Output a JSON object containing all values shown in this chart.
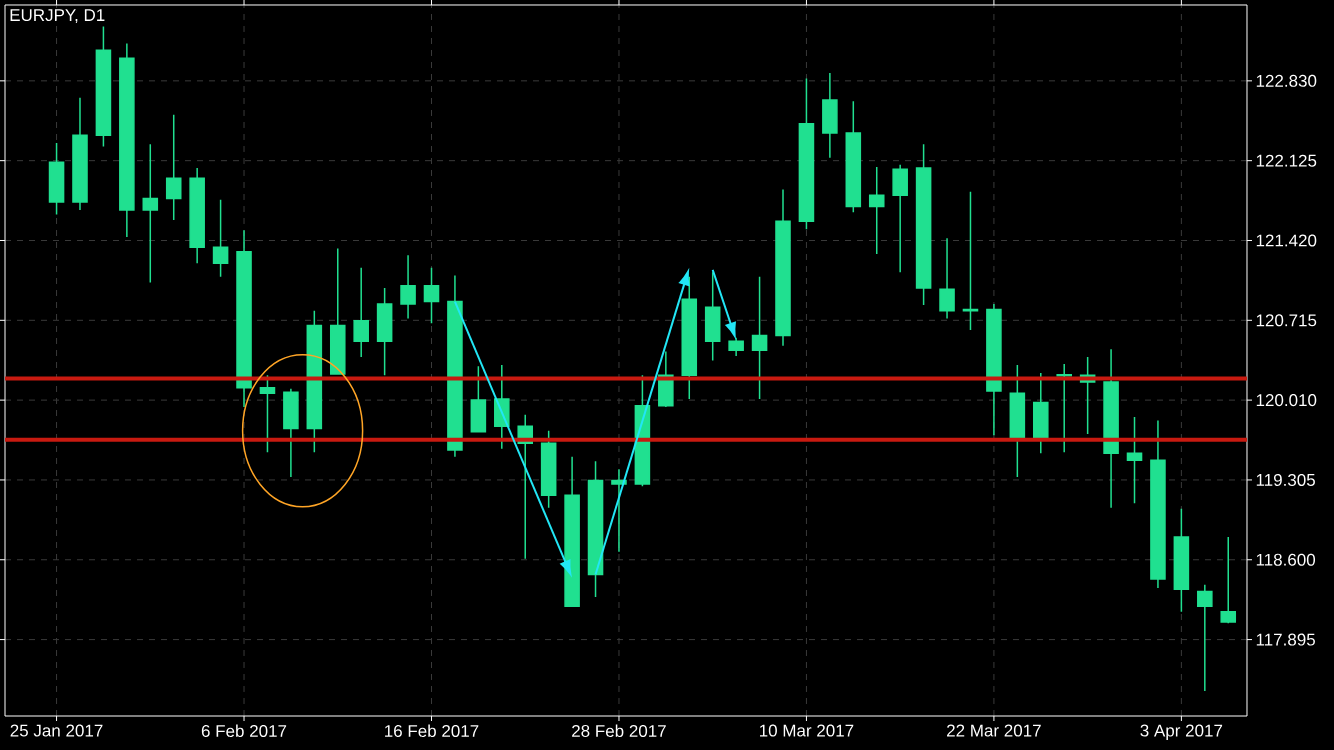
{
  "chart_data": {
    "type": "candlestick",
    "title": "EURJPY, D1",
    "categories": [
      "25 Jan 2017",
      null,
      null,
      null,
      null,
      null,
      null,
      null,
      "6 Feb 2017",
      null,
      null,
      null,
      null,
      null,
      null,
      null,
      "16 Feb 2017",
      null,
      null,
      null,
      null,
      null,
      null,
      null,
      "28 Feb 2017",
      null,
      null,
      null,
      null,
      null,
      null,
      null,
      "10 Mar 2017",
      null,
      null,
      null,
      null,
      null,
      null,
      null,
      "22 Mar 2017",
      null,
      null,
      null,
      null,
      null,
      null,
      null,
      "3 Apr 2017",
      null,
      null
    ],
    "ohlc": [
      [
        122.11,
        122.28,
        121.65,
        121.76
      ],
      [
        121.76,
        122.68,
        121.69,
        122.35
      ],
      [
        122.35,
        123.31,
        122.25,
        123.1
      ],
      [
        123.03,
        123.16,
        121.45,
        121.69
      ],
      [
        121.69,
        122.27,
        121.05,
        121.79
      ],
      [
        121.79,
        122.53,
        121.6,
        121.97
      ],
      [
        121.97,
        122.06,
        121.22,
        121.36
      ],
      [
        121.36,
        121.78,
        121.1,
        121.22
      ],
      [
        121.32,
        121.51,
        119.95,
        120.12
      ],
      [
        120.12,
        120.23,
        119.55,
        120.07
      ],
      [
        120.08,
        120.11,
        119.33,
        119.76
      ],
      [
        119.76,
        120.8,
        119.55,
        120.67
      ],
      [
        120.67,
        121.35,
        120.24,
        120.24
      ],
      [
        120.71,
        121.18,
        120.39,
        120.53
      ],
      [
        120.53,
        121.0,
        120.23,
        120.86
      ],
      [
        120.86,
        121.29,
        120.73,
        121.02
      ],
      [
        121.02,
        121.18,
        120.69,
        120.88
      ],
      [
        120.88,
        121.11,
        119.51,
        119.57
      ],
      [
        119.73,
        120.31,
        119.73,
        120.01
      ],
      [
        120.02,
        120.32,
        119.58,
        119.78
      ],
      [
        119.78,
        119.88,
        118.61,
        119.63
      ],
      [
        119.63,
        119.74,
        119.06,
        119.17
      ],
      [
        119.17,
        119.51,
        118.19,
        118.19
      ],
      [
        118.47,
        119.47,
        118.27,
        119.3
      ],
      [
        119.3,
        119.4,
        118.67,
        119.27
      ],
      [
        119.27,
        120.23,
        119.25,
        119.96
      ],
      [
        119.96,
        120.44,
        119.95,
        120.23
      ],
      [
        120.23,
        121.1,
        120.02,
        120.9
      ],
      [
        120.83,
        121.14,
        120.36,
        120.53
      ],
      [
        120.53,
        120.56,
        120.4,
        120.45
      ],
      [
        120.45,
        121.1,
        120.02,
        120.58
      ],
      [
        120.58,
        121.87,
        120.49,
        121.59
      ],
      [
        121.59,
        122.85,
        121.52,
        122.45
      ],
      [
        122.66,
        122.9,
        122.15,
        122.37
      ],
      [
        122.37,
        122.65,
        121.67,
        121.72
      ],
      [
        121.72,
        122.07,
        121.3,
        121.82
      ],
      [
        121.82,
        122.09,
        121.14,
        122.05
      ],
      [
        122.06,
        122.27,
        120.85,
        121.0
      ],
      [
        120.99,
        121.44,
        120.73,
        120.8
      ],
      [
        120.8,
        121.85,
        120.63,
        120.81
      ],
      [
        120.81,
        120.86,
        119.7,
        120.09
      ],
      [
        120.07,
        120.32,
        119.33,
        119.68
      ],
      [
        119.68,
        120.25,
        119.54,
        119.99
      ],
      [
        120.23,
        120.33,
        119.55,
        120.23
      ],
      [
        120.23,
        120.39,
        119.71,
        120.17
      ],
      [
        120.17,
        120.46,
        119.06,
        119.54
      ],
      [
        119.54,
        119.86,
        119.1,
        119.48
      ],
      [
        119.48,
        119.83,
        118.35,
        118.43
      ],
      [
        118.8,
        119.05,
        118.14,
        118.34
      ],
      [
        118.32,
        118.38,
        117.44,
        118.19
      ],
      [
        118.14,
        118.8,
        118.04,
        118.05
      ]
    ],
    "color": "#20e090",
    "ylim": [
      117.22,
      123.5
    ],
    "yticks": [
      {
        "value": 117.895,
        "label": "117.895"
      },
      {
        "value": 118.6,
        "label": "118.600"
      },
      {
        "value": 119.305,
        "label": "119.305"
      },
      {
        "value": 120.01,
        "label": "120.010"
      },
      {
        "value": 120.715,
        "label": "120.715"
      },
      {
        "value": 121.42,
        "label": "121.420"
      },
      {
        "value": 122.125,
        "label": "122.125"
      },
      {
        "value": 122.83,
        "label": "122.830"
      }
    ],
    "grid": true,
    "ref_lines": [
      {
        "axis": "y",
        "value": 120.2,
        "color": "#c81a10"
      },
      {
        "axis": "y",
        "value": 119.66,
        "color": "#c81a10"
      }
    ]
  }
}
